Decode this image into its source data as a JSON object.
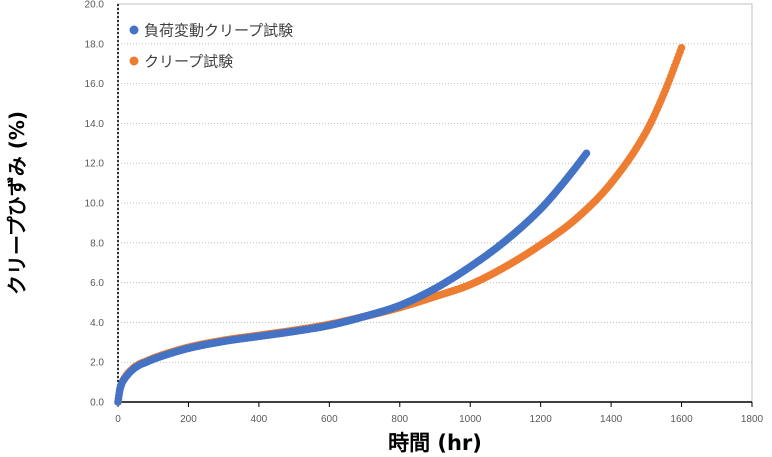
{
  "chart_data": {
    "type": "scatter",
    "title": "",
    "xlabel": "時間 (hr)",
    "ylabel": "クリープひずみ (%)",
    "xlim": [
      0,
      1800
    ],
    "ylim": [
      0,
      20
    ],
    "x_ticks": [
      "0",
      "200",
      "400",
      "600",
      "800",
      "1000",
      "1200",
      "1400",
      "1600",
      "1800"
    ],
    "y_ticks": [
      "0.0",
      "2.0",
      "4.0",
      "6.0",
      "8.0",
      "10.0",
      "12.0",
      "14.0",
      "16.0",
      "18.0",
      "20.0"
    ],
    "grid": "horizontal-dotted",
    "legend_position": "top-left",
    "series": [
      {
        "name": "負荷変動クリープ試験",
        "color": "#4472C4",
        "x": [
          0,
          5,
          10,
          20,
          40,
          60,
          80,
          100,
          150,
          200,
          300,
          400,
          500,
          600,
          700,
          800,
          900,
          1000,
          1100,
          1200,
          1250,
          1300,
          1330
        ],
        "y": [
          0.0,
          0.6,
          0.9,
          1.2,
          1.6,
          1.85,
          2.0,
          2.15,
          2.45,
          2.7,
          3.05,
          3.3,
          3.55,
          3.85,
          4.3,
          4.85,
          5.7,
          6.8,
          8.1,
          9.7,
          10.7,
          11.8,
          12.5
        ]
      },
      {
        "name": "クリープ試験",
        "color": "#ED7D31",
        "x": [
          0,
          5,
          10,
          20,
          40,
          60,
          80,
          100,
          150,
          200,
          300,
          400,
          500,
          600,
          700,
          800,
          900,
          1000,
          1100,
          1200,
          1300,
          1400,
          1500,
          1550,
          1600
        ],
        "y": [
          0.0,
          0.6,
          0.9,
          1.25,
          1.65,
          1.9,
          2.05,
          2.2,
          2.5,
          2.75,
          3.1,
          3.35,
          3.6,
          3.9,
          4.3,
          4.75,
          5.3,
          5.9,
          6.8,
          7.9,
          9.2,
          11.0,
          13.6,
          15.5,
          17.8
        ]
      }
    ]
  }
}
